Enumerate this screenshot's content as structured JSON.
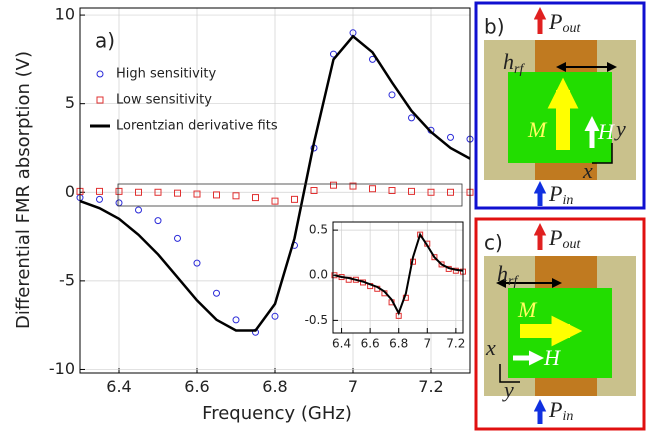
{
  "chart_data": [
    {
      "type": "line",
      "panel_label": "a)",
      "x_label": "Frequency (GHz)",
      "y_label": "Differential FMR absorption (V)",
      "x": [
        6.3,
        6.35,
        6.4,
        6.45,
        6.5,
        6.55,
        6.6,
        6.65,
        6.7,
        6.75,
        6.8,
        6.85,
        6.9,
        6.95,
        7.0,
        7.05,
        7.1,
        7.15,
        7.2,
        7.25,
        7.3
      ],
      "series": [
        {
          "name": "High sensitivity",
          "color": "#2a2ad8",
          "marker": "circle",
          "values": [
            -0.3,
            -0.4,
            -0.6,
            -1.0,
            -1.6,
            -2.6,
            -4.0,
            -5.7,
            -7.2,
            -7.9,
            -7.0,
            -3.0,
            2.5,
            7.8,
            9.0,
            7.5,
            5.5,
            4.2,
            3.5,
            3.1,
            3.0
          ]
        },
        {
          "name": "Low sensitivity",
          "color": "#e03030",
          "marker": "square",
          "values": [
            0.05,
            0.05,
            0.05,
            0.0,
            0.0,
            -0.05,
            -0.1,
            -0.15,
            -0.2,
            -0.3,
            -0.5,
            -0.4,
            0.1,
            0.4,
            0.35,
            0.2,
            0.1,
            0.05,
            0.0,
            0.0,
            0.0
          ]
        },
        {
          "name": "Lorentzian derivative fits",
          "color": "#000000",
          "marker": null,
          "values": [
            -0.5,
            -0.9,
            -1.5,
            -2.4,
            -3.5,
            -4.8,
            -6.1,
            -7.2,
            -7.8,
            -7.8,
            -6.3,
            -2.6,
            2.8,
            7.5,
            8.8,
            7.9,
            6.2,
            4.6,
            3.4,
            2.5,
            1.9
          ]
        }
      ],
      "xlim": [
        6.3,
        7.3
      ],
      "ylim": [
        -10.2,
        10.4
      ],
      "xticks": [
        6.4,
        6.6,
        6.8,
        7.0,
        7.2
      ],
      "yticks": [
        -10,
        -5,
        0,
        5,
        10
      ],
      "grid": true,
      "legend": "upper left"
    },
    {
      "type": "line",
      "x": [
        6.35,
        6.4,
        6.45,
        6.5,
        6.55,
        6.6,
        6.65,
        6.7,
        6.75,
        6.8,
        6.85,
        6.9,
        6.95,
        7.0,
        7.05,
        7.1,
        7.15,
        7.2,
        7.25
      ],
      "series": [
        {
          "color": "#e03030",
          "marker": "square",
          "values": [
            0.0,
            -0.02,
            -0.05,
            -0.05,
            -0.08,
            -0.12,
            -0.15,
            -0.2,
            -0.3,
            -0.45,
            -0.25,
            0.15,
            0.45,
            0.35,
            0.2,
            0.12,
            0.07,
            0.05,
            0.04
          ]
        },
        {
          "color": "#000000",
          "marker": null,
          "values": [
            0.0,
            -0.02,
            -0.03,
            -0.05,
            -0.07,
            -0.1,
            -0.13,
            -0.18,
            -0.27,
            -0.42,
            -0.2,
            0.2,
            0.45,
            0.33,
            0.2,
            0.12,
            0.08,
            0.06,
            0.05
          ]
        }
      ],
      "xlim": [
        6.34,
        7.25
      ],
      "ylim": [
        -0.64,
        0.59
      ],
      "xticks": [
        6.4,
        6.6,
        6.8,
        7.0,
        7.2
      ],
      "yticks": [
        -0.5,
        {
          "value": 0,
          "label": "0.0"
        },
        0.5
      ],
      "grid": true
    }
  ],
  "diagrams": [
    {
      "label": "b)",
      "P_out": {
        "symbol": "P",
        "subscript": "out"
      },
      "h_rf": {
        "symbol": "h",
        "subscript": "rf"
      },
      "magnetization": "M",
      "field": "H",
      "axis_x": "x",
      "axis_y": "y",
      "P_in": {
        "symbol": "P",
        "subscript": "in"
      }
    },
    {
      "label": "c)",
      "P_out": {
        "symbol": "P",
        "subscript": "out"
      },
      "h_rf": {
        "symbol": "h",
        "subscript": "rf"
      },
      "magnetization": "M",
      "field": "H",
      "axis_x": "x",
      "axis_y": "y",
      "P_in": {
        "symbol": "P",
        "subscript": "in"
      }
    }
  ]
}
